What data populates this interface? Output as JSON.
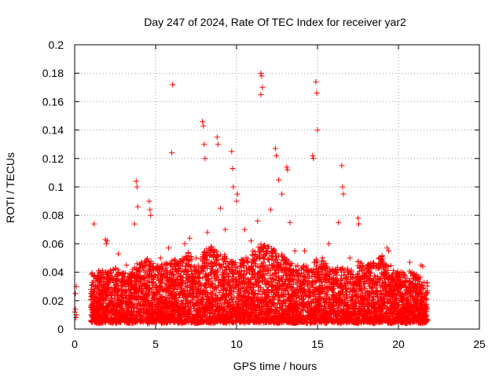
{
  "chart_data": {
    "type": "scatter",
    "title": "Day 247 of 2024, Rate Of TEC Index for receiver yar2",
    "xlabel": "GPS time / hours",
    "ylabel": "ROTI / TECUs",
    "xlim": [
      0,
      25
    ],
    "ylim": [
      0,
      0.2
    ],
    "x_ticks": [
      "0",
      "5",
      "10",
      "15",
      "20",
      "25"
    ],
    "y_ticks": [
      "0",
      "0.02",
      "0.04",
      "0.06",
      "0.08",
      "0.1",
      "0.12",
      "0.14",
      "0.16",
      "0.18",
      "0.2"
    ],
    "grid": true,
    "marker": "+",
    "color": "#ff0000",
    "series": [
      {
        "points": [
          [
            0.0,
            0.012
          ],
          [
            0.05,
            0.014
          ],
          [
            0.1,
            0.01
          ],
          [
            0.05,
            0.025
          ],
          [
            0.1,
            0.03
          ],
          [
            0.08,
            0.008
          ],
          [
            6.0,
            0.124
          ],
          [
            6.05,
            0.172
          ],
          [
            11.5,
            0.18
          ],
          [
            11.55,
            0.178
          ],
          [
            11.6,
            0.17
          ],
          [
            11.5,
            0.165
          ],
          [
            14.9,
            0.174
          ],
          [
            14.95,
            0.166
          ],
          [
            15.0,
            0.14
          ],
          [
            13.1,
            0.114
          ],
          [
            13.15,
            0.112
          ],
          [
            7.9,
            0.146
          ],
          [
            7.95,
            0.143
          ],
          [
            8.0,
            0.13
          ],
          [
            8.05,
            0.12
          ],
          [
            8.8,
            0.135
          ],
          [
            8.85,
            0.13
          ],
          [
            9.7,
            0.125
          ],
          [
            9.75,
            0.113
          ],
          [
            9.8,
            0.1
          ],
          [
            10.0,
            0.09
          ],
          [
            10.05,
            0.095
          ],
          [
            12.4,
            0.127
          ],
          [
            12.45,
            0.122
          ],
          [
            12.6,
            0.105
          ],
          [
            14.7,
            0.122
          ],
          [
            14.75,
            0.12
          ],
          [
            16.5,
            0.115
          ],
          [
            16.55,
            0.1
          ],
          [
            16.6,
            0.095
          ],
          [
            17.5,
            0.078
          ],
          [
            17.55,
            0.074
          ],
          [
            3.8,
            0.104
          ],
          [
            3.85,
            0.1
          ],
          [
            3.9,
            0.086
          ],
          [
            3.7,
            0.074
          ],
          [
            4.6,
            0.09
          ],
          [
            4.65,
            0.084
          ],
          [
            4.7,
            0.08
          ],
          [
            1.2,
            0.074
          ],
          [
            1.9,
            0.063
          ],
          [
            1.95,
            0.06
          ],
          [
            2.0,
            0.062
          ],
          [
            19.3,
            0.057
          ],
          [
            19.4,
            0.055
          ],
          [
            20.7,
            0.047
          ],
          [
            21.4,
            0.045
          ],
          [
            21.5,
            0.044
          ],
          [
            5.8,
            0.057
          ],
          [
            6.8,
            0.06
          ],
          [
            7.1,
            0.064
          ],
          [
            10.9,
            0.062
          ],
          [
            11.3,
            0.076
          ],
          [
            13.6,
            0.055
          ],
          [
            15.7,
            0.06
          ],
          [
            16.3,
            0.075
          ],
          [
            18.5,
            0.045
          ],
          [
            10.5,
            0.07
          ],
          [
            9.0,
            0.085
          ],
          [
            9.3,
            0.07
          ],
          [
            8.2,
            0.068
          ],
          [
            7.5,
            0.05
          ],
          [
            12.1,
            0.084
          ],
          [
            12.8,
            0.095
          ],
          [
            13.3,
            0.075
          ],
          [
            14.2,
            0.055
          ],
          [
            15.3,
            0.05
          ],
          [
            17.0,
            0.05
          ],
          [
            20.1,
            0.04
          ],
          [
            21.0,
            0.038
          ],
          [
            2.7,
            0.053
          ],
          [
            3.2,
            0.045
          ],
          [
            5.3,
            0.05
          ]
        ]
      }
    ],
    "density_envelope": {
      "description_note": "",
      "x": [
        1.0,
        1.5,
        2.0,
        2.5,
        3.0,
        3.5,
        4.0,
        4.5,
        5.0,
        5.5,
        6.0,
        6.5,
        7.0,
        7.5,
        8.0,
        8.5,
        9.0,
        9.5,
        10.0,
        10.5,
        11.0,
        11.5,
        12.0,
        12.5,
        13.0,
        13.5,
        14.0,
        14.5,
        15.0,
        15.5,
        16.0,
        16.5,
        17.0,
        17.5,
        18.0,
        18.5,
        19.0,
        19.5,
        20.0,
        20.5,
        21.0,
        21.5,
        21.8
      ],
      "upper": [
        0.04,
        0.042,
        0.04,
        0.045,
        0.04,
        0.042,
        0.048,
        0.05,
        0.045,
        0.046,
        0.05,
        0.048,
        0.055,
        0.045,
        0.055,
        0.06,
        0.055,
        0.05,
        0.048,
        0.05,
        0.055,
        0.06,
        0.058,
        0.055,
        0.052,
        0.045,
        0.045,
        0.045,
        0.05,
        0.048,
        0.042,
        0.045,
        0.042,
        0.048,
        0.045,
        0.048,
        0.052,
        0.045,
        0.04,
        0.042,
        0.04,
        0.035,
        0.033
      ],
      "lower": [
        0.005,
        0.004,
        0.005,
        0.004,
        0.005,
        0.004,
        0.005,
        0.004,
        0.005,
        0.004,
        0.005,
        0.004,
        0.005,
        0.004,
        0.005,
        0.004,
        0.005,
        0.004,
        0.005,
        0.004,
        0.005,
        0.004,
        0.005,
        0.004,
        0.005,
        0.004,
        0.005,
        0.004,
        0.005,
        0.004,
        0.005,
        0.004,
        0.005,
        0.004,
        0.005,
        0.004,
        0.005,
        0.004,
        0.005,
        0.004,
        0.005,
        0.004,
        0.005
      ]
    }
  }
}
